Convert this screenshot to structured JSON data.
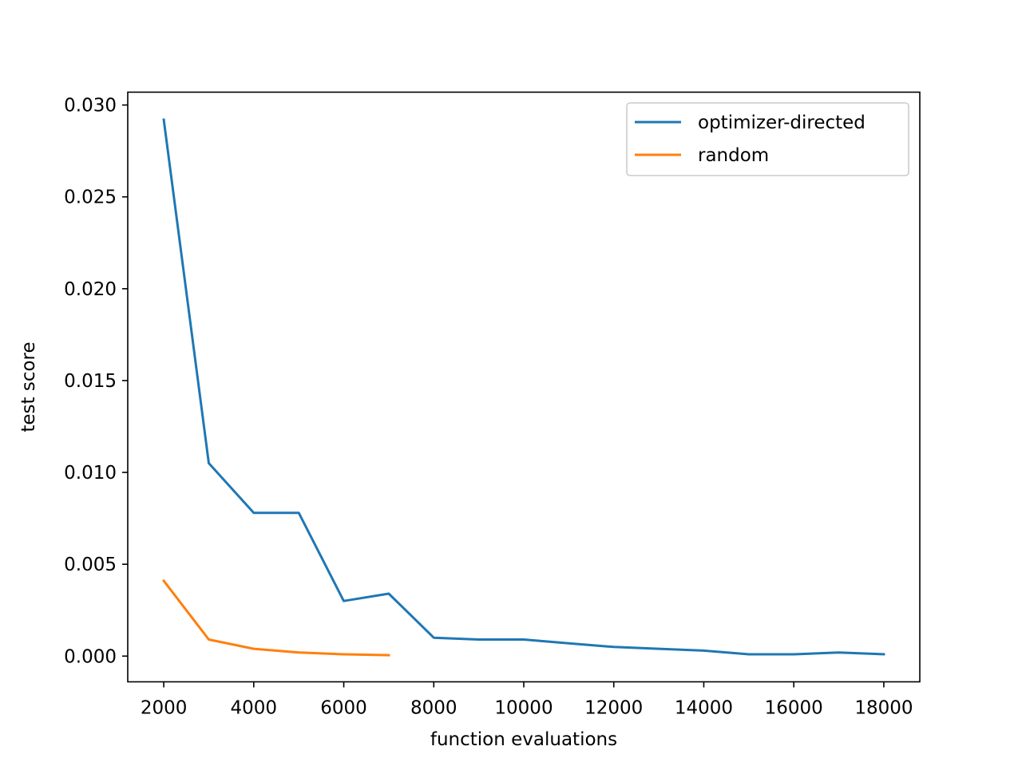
{
  "chart_data": {
    "type": "line",
    "title": "",
    "xlabel": "function evaluations",
    "ylabel": "test score",
    "xlim": [
      1200,
      18800
    ],
    "ylim": [
      -0.0014,
      0.0307
    ],
    "xticks": [
      2000,
      4000,
      6000,
      8000,
      10000,
      12000,
      14000,
      16000,
      18000
    ],
    "xtick_labels": [
      "2000",
      "4000",
      "6000",
      "8000",
      "10000",
      "12000",
      "14000",
      "16000",
      "18000"
    ],
    "yticks": [
      0.0,
      0.005,
      0.01,
      0.015,
      0.02,
      0.025,
      0.03
    ],
    "ytick_labels": [
      "0.000",
      "0.005",
      "0.010",
      "0.015",
      "0.020",
      "0.025",
      "0.030"
    ],
    "grid": false,
    "legend_position": "top-right",
    "series": [
      {
        "name": "optimizer-directed",
        "color": "#1f77b4",
        "x": [
          2000,
          3000,
          4000,
          5000,
          6000,
          7000,
          8000,
          9000,
          10000,
          11000,
          12000,
          13000,
          14000,
          15000,
          16000,
          17000,
          18000
        ],
        "y": [
          0.0292,
          0.0105,
          0.0078,
          0.0078,
          0.003,
          0.0034,
          0.001,
          0.0009,
          0.0009,
          0.0007,
          0.0005,
          0.0004,
          0.0003,
          0.0001,
          0.0001,
          0.0002,
          0.0001
        ]
      },
      {
        "name": "random",
        "color": "#ff7f0e",
        "x": [
          2000,
          3000,
          4000,
          5000,
          6000,
          7000
        ],
        "y": [
          0.0041,
          0.0009,
          0.0004,
          0.0002,
          0.0001,
          5e-05
        ]
      }
    ]
  }
}
